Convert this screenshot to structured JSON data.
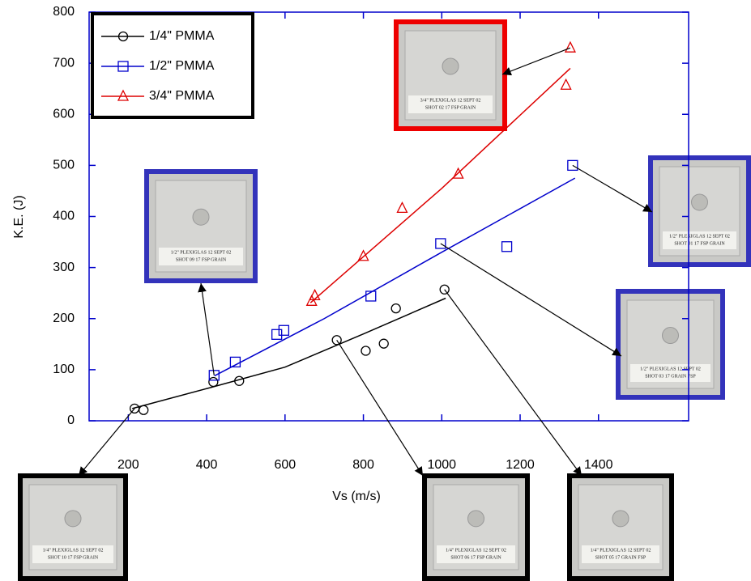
{
  "chart_data": {
    "type": "scatter",
    "x_label": "Vs (m/s)",
    "y_label": "K.E. (J)",
    "xlim": [
      100,
      1630
    ],
    "ylim": [
      0,
      800
    ],
    "xticks": [
      200,
      400,
      600,
      800,
      1000,
      1200,
      1400
    ],
    "yticks": [
      0,
      100,
      200,
      300,
      400,
      500,
      600,
      700,
      800
    ],
    "grid": false,
    "legend": "upper left",
    "axis_color": "#0000cc",
    "series": [
      {
        "name": "1/4\" PMMA",
        "color": "#000000",
        "marker": "circle",
        "x": [
          216,
          239,
          417,
          483,
          732,
          806,
          852,
          883,
          1007
        ],
        "values": [
          24,
          21,
          76,
          78,
          158,
          137,
          151,
          220,
          257
        ],
        "fit_x": [
          210,
          400,
          600,
          800,
          1010
        ],
        "fit_values": [
          24,
          63,
          105,
          170,
          240
        ]
      },
      {
        "name": "1/2\" PMMA",
        "color": "#0000cc",
        "marker": "square",
        "x": [
          419,
          473,
          579,
          597,
          819,
          997,
          1166,
          1334
        ],
        "values": [
          89,
          115,
          169,
          177,
          244,
          347,
          341,
          500
        ],
        "fit_x": [
          420,
          700,
          1000,
          1340
        ],
        "fit_values": [
          88,
          200,
          330,
          475
        ]
      },
      {
        "name": "3/4\" PMMA",
        "color": "#dd0000",
        "marker": "triangle",
        "x": [
          668,
          676,
          800,
          899,
          1042,
          1317,
          1328
        ],
        "values": [
          234,
          245,
          322,
          416,
          483,
          657,
          730
        ],
        "fit_x": [
          665,
          1000,
          1328
        ],
        "fit_values": [
          231,
          455,
          690
        ]
      }
    ]
  },
  "insets": [
    {
      "border_color": "#ee0000",
      "caption": [
        "3/4\" PLEXIGLAS 12 SEPT 02",
        "SHOT 02      17 FSP GRAIN"
      ]
    },
    {
      "border_color": "#3333bb",
      "caption": [
        "1/2\" PLEXIGLAS 12 SEPT 02",
        "SHOT 09      17 FSP GRAIN"
      ]
    },
    {
      "border_color": "#3333bb",
      "caption": [
        "1/2\" PLEXIGLAS 12 SEPT 02",
        "SHOT 01      17 FSP GRAIN"
      ]
    },
    {
      "border_color": "#3333bb",
      "caption": [
        "1/2\" PLEXIGLAS 12 SEPT 02",
        "SHOT 03      17 GRAIN FSP"
      ]
    },
    {
      "border_color": "#000000",
      "caption": [
        "1/4\" PLEXIGLAS 12 SEPT 02",
        "SHOT 10      17 FSP GRAIN"
      ]
    },
    {
      "border_color": "#000000",
      "caption": [
        "1/4\" PLEXIGLAS 12 SEPT 02",
        "SHOT 06      17 FSP GRAIN"
      ]
    },
    {
      "border_color": "#000000",
      "caption": [
        "1/4\" PLEXIGLAS 12 SEPT 02",
        "SHOT 05      17 GRAIN FSP"
      ]
    }
  ]
}
